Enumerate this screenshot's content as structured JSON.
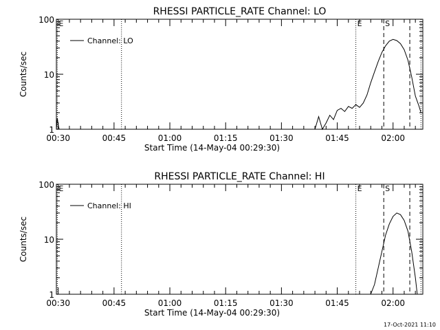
{
  "footer": {
    "timestamp": "17-Oct-2021 11:10"
  },
  "chart_data": [
    {
      "type": "line",
      "title": "RHESSI PARTICLE_RATE Channel: LO",
      "xlabel": "Start Time (14-May-04 00:29:30)",
      "ylabel": "Counts/sec",
      "yscale": "log",
      "ylim": [
        1,
        100
      ],
      "xlim": [
        "00:29:30",
        "02:08:00"
      ],
      "xticks": [
        "00:30",
        "00:45",
        "01:00",
        "01:15",
        "01:30",
        "01:45",
        "02:00"
      ],
      "yticks": [
        "1",
        "10",
        "100"
      ],
      "legend": {
        "placement": "top-left",
        "entries": [
          "Channel: LO"
        ]
      },
      "markers": [
        {
          "time": "00:29:45",
          "label": "E",
          "style": "dotted"
        },
        {
          "time": "00:47:00",
          "label": "",
          "style": "dotted"
        },
        {
          "time": "01:50:00",
          "label": "E",
          "style": "dotted"
        },
        {
          "time": "01:57:30",
          "label": "S",
          "style": "dashed"
        },
        {
          "time": "02:04:30",
          "label": "",
          "style": "dashed"
        },
        {
          "time": "02:07:30",
          "label": "",
          "style": "dotted"
        }
      ],
      "series": [
        {
          "x": [
            "00:29:30",
            "00:29:45",
            "00:30:00",
            "00:30:15",
            "01:39:00",
            "01:40:00",
            "01:41:00",
            "01:42:00",
            "01:43:00",
            "01:44:00",
            "01:45:00",
            "01:46:00",
            "01:47:00",
            "01:48:00",
            "01:49:00",
            "01:50:00",
            "01:51:00",
            "01:52:00",
            "01:53:00",
            "01:54:00",
            "01:55:00",
            "01:56:00",
            "01:57:00",
            "01:58:00",
            "01:59:00",
            "02:00:00",
            "02:01:00",
            "02:02:00",
            "02:03:00",
            "02:04:00",
            "02:05:00",
            "02:06:00",
            "02:07:00",
            "02:07:30"
          ],
          "y": [
            1,
            1.6,
            1.2,
            1,
            1,
            1.7,
            1,
            1.3,
            1.8,
            1.5,
            2.2,
            2.4,
            2.1,
            2.6,
            2.4,
            2.8,
            2.5,
            3.0,
            4.2,
            7.0,
            11,
            17,
            25,
            33,
            40,
            43,
            41,
            36,
            28,
            18,
            9,
            4,
            2.6,
            2.0
          ]
        }
      ]
    },
    {
      "type": "line",
      "title": "RHESSI PARTICLE_RATE Channel: HI",
      "xlabel": "Start Time (14-May-04 00:29:30)",
      "ylabel": "Counts/sec",
      "yscale": "log",
      "ylim": [
        1,
        100
      ],
      "xlim": [
        "00:29:30",
        "02:08:00"
      ],
      "xticks": [
        "00:30",
        "00:45",
        "01:00",
        "01:15",
        "01:30",
        "01:45",
        "02:00"
      ],
      "yticks": [
        "1",
        "10",
        "100"
      ],
      "legend": {
        "placement": "top-left",
        "entries": [
          "Channel: HI"
        ]
      },
      "markers": [
        {
          "time": "00:29:45",
          "label": "E",
          "style": "dotted"
        },
        {
          "time": "00:47:00",
          "label": "",
          "style": "dotted"
        },
        {
          "time": "01:50:00",
          "label": "E",
          "style": "dotted"
        },
        {
          "time": "01:57:30",
          "label": "S",
          "style": "dashed"
        },
        {
          "time": "02:04:30",
          "label": "",
          "style": "dashed"
        },
        {
          "time": "02:07:30",
          "label": "",
          "style": "dotted"
        }
      ],
      "series": [
        {
          "x": [
            "01:54:00",
            "01:55:00",
            "01:56:00",
            "01:57:00",
            "01:58:00",
            "01:59:00",
            "02:00:00",
            "02:01:00",
            "02:02:00",
            "02:03:00",
            "02:04:00",
            "02:05:00",
            "02:06:00",
            "02:06:30"
          ],
          "y": [
            1,
            1.5,
            3,
            6,
            12,
            19,
            26,
            30,
            28,
            22,
            14,
            6,
            2,
            1
          ]
        }
      ]
    }
  ]
}
